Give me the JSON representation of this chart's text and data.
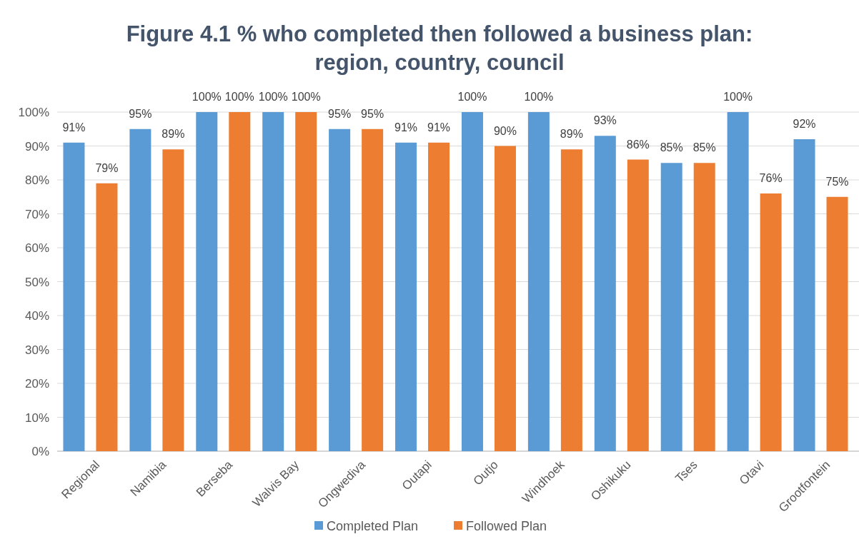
{
  "chart_data": {
    "type": "bar",
    "title": "Figure 4.1 % who completed then followed a business plan: region, country, council",
    "categories": [
      "Regional",
      "Namibia",
      "Berseba",
      "Walvis Bay",
      "Ongwediva",
      "Outapi",
      "Outjo",
      "Windhoek",
      "Oshikuku",
      "Tses",
      "Otavi",
      "Grootfontein"
    ],
    "series": [
      {
        "name": "Completed Plan",
        "color": "#5b9bd5",
        "values": [
          91,
          95,
          100,
          100,
          95,
          91,
          100,
          100,
          93,
          85,
          100,
          92
        ],
        "value_labels": [
          "91%",
          "95%",
          "100%",
          "100%",
          "95%",
          "91%",
          "100%",
          "100%",
          "93%",
          "85%",
          "100%",
          "92%"
        ]
      },
      {
        "name": "Followed Plan",
        "color": "#ed7d31",
        "values": [
          79,
          89,
          100,
          100,
          95,
          91,
          90,
          89,
          86,
          85,
          76,
          75
        ],
        "value_labels": [
          "79%",
          "89%",
          "100%",
          "100%",
          "95%",
          "91%",
          "90%",
          "89%",
          "86%",
          "85%",
          "76%",
          "75%"
        ]
      }
    ],
    "ylim": [
      0,
      100
    ],
    "yticks": [
      {
        "value": 0,
        "label": "0%"
      },
      {
        "value": 10,
        "label": "10%"
      },
      {
        "value": 20,
        "label": "20%"
      },
      {
        "value": 30,
        "label": "30%"
      },
      {
        "value": 40,
        "label": "40%"
      },
      {
        "value": 50,
        "label": "50%"
      },
      {
        "value": 60,
        "label": "60%"
      },
      {
        "value": 70,
        "label": "70%"
      },
      {
        "value": 80,
        "label": "80%"
      },
      {
        "value": 90,
        "label": "90%"
      },
      {
        "value": 100,
        "label": "100%"
      }
    ],
    "grid": "y",
    "legend": "bottom"
  }
}
